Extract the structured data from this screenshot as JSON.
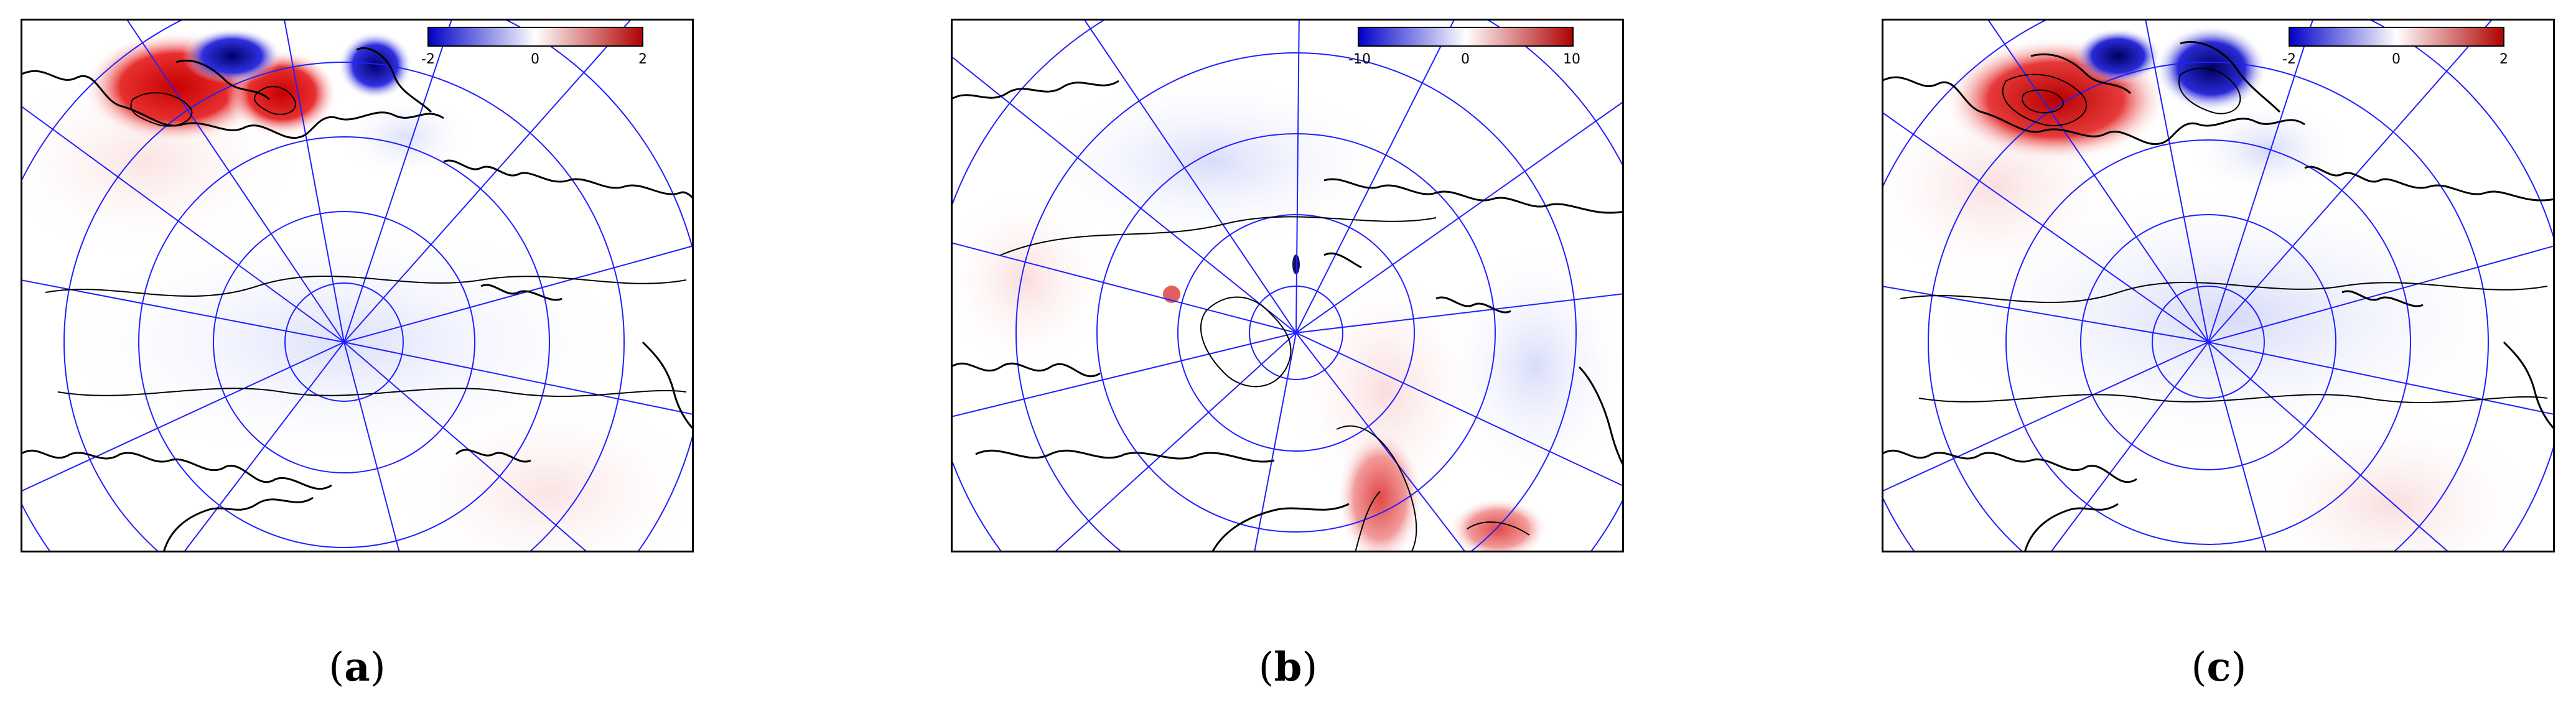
{
  "panels": [
    {
      "id": "a",
      "caption_letter": "a",
      "colorbar": {
        "min": "-2",
        "mid": "0",
        "max": "2"
      },
      "colors": {
        "neg": "#1010d0",
        "pos": "#d01010"
      }
    },
    {
      "id": "b",
      "caption_letter": "b",
      "colorbar": {
        "min": "-10",
        "mid": "0",
        "max": "10"
      },
      "colors": {
        "neg": "#1010d0",
        "pos": "#d01010"
      }
    },
    {
      "id": "c",
      "caption_letter": "c",
      "colorbar": {
        "min": "-2",
        "mid": "0",
        "max": "2"
      },
      "colors": {
        "neg": "#1010d0",
        "pos": "#d01010"
      }
    }
  ],
  "grid_color": "#2020ff",
  "coast_color": "#000000"
}
